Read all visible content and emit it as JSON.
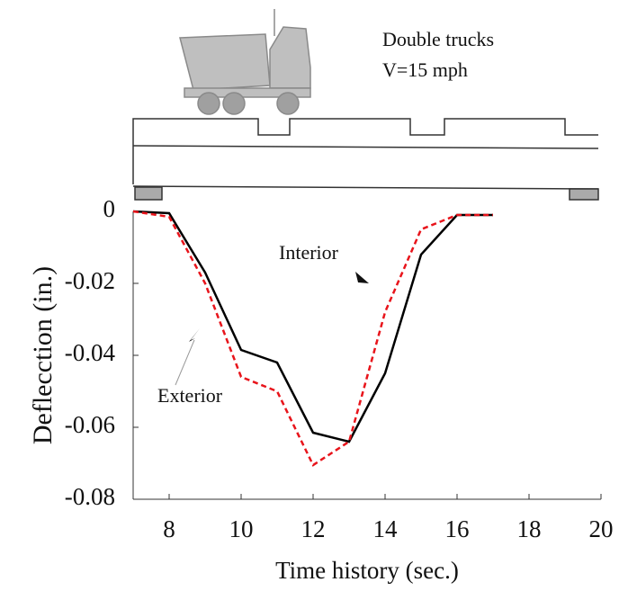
{
  "chart_data": {
    "type": "line",
    "annotations": [
      "Double trucks",
      "V=15 mph",
      "Interior",
      "Exterior"
    ],
    "xlabel": "Time history (sec.)",
    "ylabel": "Deflecction (in.)",
    "x": [
      7,
      8,
      9,
      10,
      11,
      12,
      13,
      14,
      15,
      16,
      17
    ],
    "series": [
      {
        "name": "Interior",
        "color": "#000000",
        "dash": false,
        "values": [
          0,
          -0.0005,
          -0.017,
          -0.0385,
          -0.042,
          -0.0615,
          -0.064,
          -0.045,
          -0.012,
          -0.001,
          -0.001
        ]
      },
      {
        "name": "Exterior",
        "color": "#e8141b",
        "dash": true,
        "values": [
          0,
          -0.0015,
          -0.02,
          -0.046,
          -0.05,
          -0.0705,
          -0.064,
          -0.028,
          -0.005,
          -0.001,
          -0.001
        ]
      }
    ],
    "xlim": [
      7,
      20
    ],
    "xticks": [
      8,
      10,
      12,
      14,
      16,
      18,
      20
    ],
    "ylim": [
      -0.08,
      0
    ],
    "yticks": [
      0,
      -0.02,
      -0.04,
      -0.06,
      -0.08
    ],
    "grid": false
  }
}
